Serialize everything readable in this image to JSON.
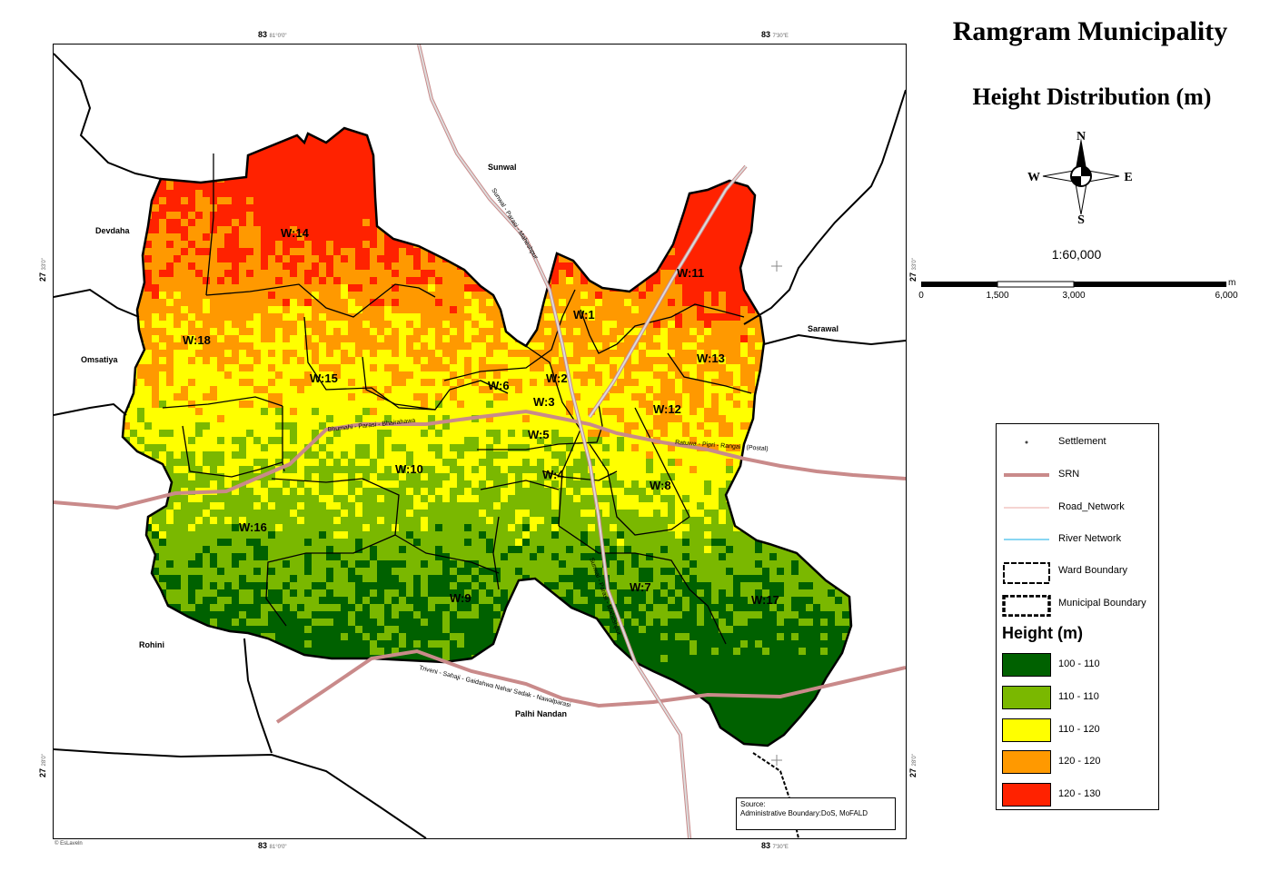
{
  "title": "Ramgram Municipality",
  "subtitle": "Height Distribution (m)",
  "compass": {
    "n": "N",
    "s": "S",
    "e": "E",
    "w": "W"
  },
  "scale": {
    "ratio": "1:60,000",
    "unit": "m",
    "ticks": [
      "0",
      "1,500",
      "3,000",
      "6,000"
    ]
  },
  "coordinates": {
    "top_left": {
      "deg": "83",
      "sub": "81°0'0\""
    },
    "top_right": {
      "deg": "83",
      "sub": "7'30\"E"
    },
    "bottom_left": {
      "deg": "83",
      "sub": "81°0'0\""
    },
    "bottom_right": {
      "deg": "83",
      "sub": "7'30\"E"
    },
    "left_upper": {
      "deg": "27",
      "sub": "33'0\""
    },
    "left_lower": {
      "deg": "27",
      "sub": "28'0\""
    },
    "right_upper": {
      "deg": "27",
      "sub": "33'0\""
    },
    "right_lower": {
      "deg": "27",
      "sub": "28'0\""
    }
  },
  "places": [
    {
      "name": "Sunwal",
      "key": "sunwal"
    },
    {
      "name": "Devdaha",
      "key": "devdaha"
    },
    {
      "name": "Omsatiya",
      "key": "omsatiya"
    },
    {
      "name": "Sarawal",
      "key": "sarawal"
    },
    {
      "name": "Rohini",
      "key": "rohini"
    },
    {
      "name": "Palhi Nandan",
      "key": "palhi"
    }
  ],
  "roads": {
    "sunwal": "Sunwal - Parasi - Maheshpur",
    "bhumahi": "Bhumahi - Parasi - Bhairahawa",
    "ratwa": "Ratuwa - Pipri - Rangai - (Postal)",
    "sunwal_south": "Sunwal - Parasi - Maheshpur",
    "triveni": "Triveni - Sahaji - Gaidahwa Nahar Sadak - Nawalparasi"
  },
  "wards": [
    {
      "label": "W:14",
      "key": "w14"
    },
    {
      "label": "W:11",
      "key": "w11"
    },
    {
      "label": "W:1",
      "key": "w1"
    },
    {
      "label": "W:18",
      "key": "w18"
    },
    {
      "label": "W:13",
      "key": "w13"
    },
    {
      "label": "W:15",
      "key": "w15"
    },
    {
      "label": "W:6",
      "key": "w6"
    },
    {
      "label": "W:2",
      "key": "w2"
    },
    {
      "label": "W:3",
      "key": "w3"
    },
    {
      "label": "W:12",
      "key": "w12"
    },
    {
      "label": "W:5",
      "key": "w5"
    },
    {
      "label": "W:10",
      "key": "w10"
    },
    {
      "label": "W:4",
      "key": "w4"
    },
    {
      "label": "W:8",
      "key": "w8"
    },
    {
      "label": "W:16",
      "key": "w16"
    },
    {
      "label": "W:9",
      "key": "w9"
    },
    {
      "label": "W:7",
      "key": "w7"
    },
    {
      "label": "W:17",
      "key": "w17"
    }
  ],
  "legend": {
    "settlement": "Settlement",
    "srn": "SRN",
    "road_network": "Road_Network",
    "river_network": "River Network",
    "ward_boundary": "Ward Boundary",
    "municipal_boundary": "Municipal Boundary",
    "height_title": "Height (m)",
    "classes": [
      {
        "label": "100 - 110",
        "color": "#006100"
      },
      {
        "label": "110 - 110",
        "color": "#7ab800"
      },
      {
        "label": "110 - 120",
        "color": "#ffff00"
      },
      {
        "label": "120 - 120",
        "color": "#ff9900"
      },
      {
        "label": "120 - 130",
        "color": "#ff2200"
      }
    ]
  },
  "source": {
    "line1": "Source:",
    "line2": "Administrative Boundary:DoS, MoFALD"
  },
  "credit": "© EsLaveln",
  "colors": {
    "srn": "#c98a8a",
    "boundary": "#000000"
  }
}
